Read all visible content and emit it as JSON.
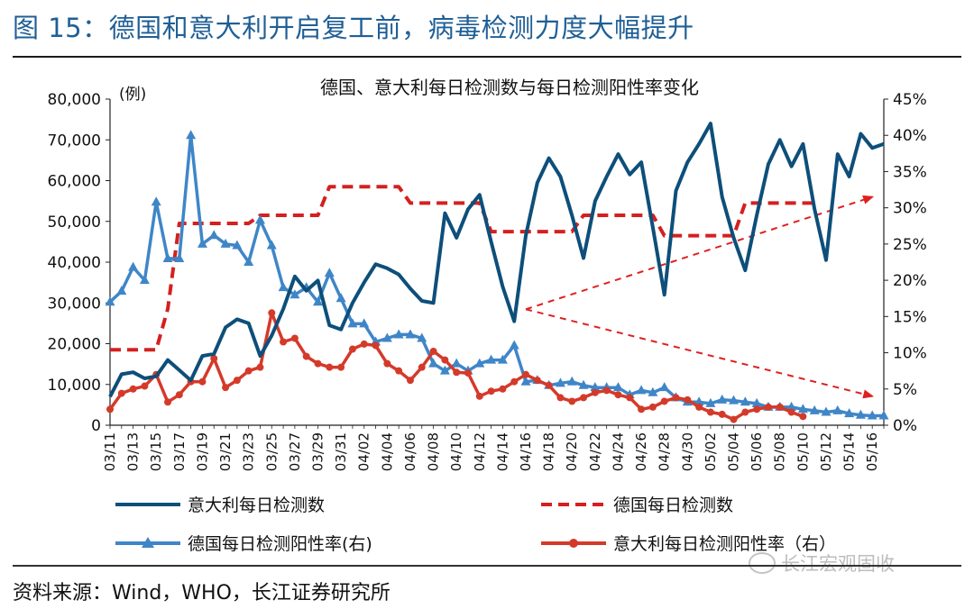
{
  "figure_title": "图 15：德国和意大利开启复工前，病毒检测力度大幅提升",
  "source_note": "资料来源：Wind，WHO，长江证券研究所",
  "watermark": "长江宏观固收",
  "colors": {
    "italy_tests": "#0d4f7a",
    "germany_tests": "#d42020",
    "germany_positive": "#3f86c8",
    "italy_positive": "#d43a2a",
    "arrow": "#e02020",
    "title_blue": "#1f5f96"
  },
  "chart_data": {
    "type": "line",
    "title": "德国、意大利每日检测数与每日检测阳性率变化",
    "y_left_unit": "(例)",
    "y_left_ticks": [
      "0",
      "10,000",
      "20,000",
      "30,000",
      "40,000",
      "50,000",
      "60,000",
      "70,000",
      "80,000"
    ],
    "y_right_ticks": [
      "0%",
      "5%",
      "10%",
      "15%",
      "20%",
      "25%",
      "30%",
      "35%",
      "40%",
      "45%"
    ],
    "ylim_left": [
      0,
      80000
    ],
    "ylim_right": [
      0,
      0.45
    ],
    "x_tick_labels": [
      "03/11",
      "03/13",
      "03/15",
      "03/17",
      "03/19",
      "03/21",
      "03/23",
      "03/25",
      "03/27",
      "03/29",
      "03/31",
      "04/02",
      "04/04",
      "04/06",
      "04/08",
      "04/10",
      "04/12",
      "04/14",
      "04/16",
      "04/18",
      "04/20",
      "04/22",
      "04/24",
      "04/26",
      "04/28",
      "04/30",
      "05/02",
      "05/04",
      "05/06",
      "05/08",
      "05/10",
      "05/12",
      "05/14",
      "05/16"
    ],
    "x": [
      "03/11",
      "03/12",
      "03/13",
      "03/14",
      "03/15",
      "03/16",
      "03/17",
      "03/18",
      "03/19",
      "03/20",
      "03/21",
      "03/22",
      "03/23",
      "03/24",
      "03/25",
      "03/26",
      "03/27",
      "03/28",
      "03/29",
      "03/30",
      "03/31",
      "04/01",
      "04/02",
      "04/03",
      "04/04",
      "04/05",
      "04/06",
      "04/07",
      "04/08",
      "04/09",
      "04/10",
      "04/11",
      "04/12",
      "04/13",
      "04/14",
      "04/15",
      "04/16",
      "04/17",
      "04/18",
      "04/19",
      "04/20",
      "04/21",
      "04/22",
      "04/23",
      "04/24",
      "04/25",
      "04/26",
      "04/27",
      "04/28",
      "04/29",
      "04/30",
      "05/01",
      "05/02",
      "05/03",
      "05/04",
      "05/05",
      "05/06",
      "05/07",
      "05/08",
      "05/09",
      "05/10",
      "05/11",
      "05/12",
      "05/13",
      "05/14",
      "05/15",
      "05/16",
      "05/17"
    ],
    "series": [
      {
        "name": "意大利每日检测数",
        "axis": "left",
        "style": "solid",
        "values": [
          7000,
          12500,
          13000,
          11500,
          12000,
          16000,
          13500,
          11000,
          17000,
          17500,
          24000,
          26000,
          25000,
          17000,
          22000,
          28500,
          36500,
          33000,
          35500,
          24500,
          23500,
          30000,
          35000,
          39500,
          38500,
          37000,
          33500,
          30500,
          30000,
          52000,
          46000,
          53000,
          56500,
          45000,
          34000,
          25500,
          46500,
          59500,
          65500,
          61000,
          51500,
          41000,
          55000,
          61000,
          66500,
          61500,
          64500,
          48500,
          32000,
          57500,
          64500,
          69000,
          74000,
          56000,
          46000,
          38000,
          51500,
          64000,
          70000,
          63500,
          69000,
          53000,
          40500,
          66500,
          61000,
          71500,
          68000,
          69000
        ]
      },
      {
        "name": "德国每日检测数",
        "axis": "left",
        "style": "dashed",
        "values": [
          18500,
          18500,
          18500,
          18500,
          18500,
          28500,
          49500,
          49500,
          49500,
          49500,
          49500,
          49500,
          49500,
          51500,
          51500,
          51500,
          51500,
          51500,
          51500,
          58500,
          58500,
          58500,
          58500,
          58500,
          58500,
          58500,
          54500,
          54500,
          54500,
          54500,
          54500,
          54500,
          54500,
          47500,
          47500,
          47500,
          47500,
          47500,
          47500,
          47500,
          47500,
          51500,
          51500,
          51500,
          51500,
          51500,
          51500,
          51500,
          46500,
          46500,
          46500,
          46500,
          46500,
          46500,
          46500,
          54500,
          54500,
          54500,
          54500,
          54500,
          54500,
          54500,
          null,
          null,
          null,
          null,
          null,
          null
        ]
      },
      {
        "name": "德国每日检测阳性率(右)",
        "axis": "right",
        "style": "line-triangle",
        "values": [
          0.17,
          0.185,
          0.218,
          0.2,
          0.308,
          0.23,
          0.23,
          0.4,
          0.25,
          0.262,
          0.25,
          0.248,
          0.225,
          0.283,
          0.248,
          0.19,
          0.18,
          0.19,
          0.17,
          0.21,
          0.175,
          0.14,
          0.14,
          0.115,
          0.12,
          0.125,
          0.125,
          0.12,
          0.085,
          0.075,
          0.085,
          0.075,
          0.085,
          0.09,
          0.09,
          0.11,
          0.06,
          0.062,
          0.055,
          0.058,
          0.06,
          0.055,
          0.052,
          0.052,
          0.052,
          0.042,
          0.048,
          0.045,
          0.052,
          0.038,
          0.032,
          0.032,
          0.03,
          0.035,
          0.034,
          0.032,
          0.03,
          0.025,
          0.025,
          0.025,
          0.022,
          0.02,
          0.018,
          0.02,
          0.016,
          0.014,
          0.013,
          0.013
        ]
      },
      {
        "name": "意大利每日检测阳性率（右）",
        "axis": "right",
        "style": "line-circle",
        "values": [
          0.022,
          0.044,
          0.05,
          0.054,
          0.07,
          0.032,
          0.042,
          0.06,
          0.06,
          0.092,
          0.052,
          0.062,
          0.075,
          0.08,
          0.155,
          0.115,
          0.12,
          0.095,
          0.085,
          0.08,
          0.08,
          0.105,
          0.112,
          0.11,
          0.085,
          0.075,
          0.062,
          0.08,
          0.102,
          0.09,
          0.073,
          0.072,
          0.04,
          0.047,
          0.05,
          0.06,
          0.07,
          0.062,
          0.055,
          0.038,
          0.033,
          0.038,
          0.045,
          0.048,
          0.042,
          0.038,
          0.022,
          0.025,
          0.033,
          0.038,
          0.035,
          0.025,
          0.018,
          0.015,
          0.008,
          0.018,
          0.022,
          0.025,
          0.025,
          0.018,
          0.012,
          null,
          null,
          null,
          null,
          null,
          null,
          null
        ]
      }
    ],
    "annotations": [
      {
        "type": "dashed-arrow",
        "from": {
          "x": "04/16",
          "y": 0.16
        },
        "to": {
          "x": "05/16",
          "y": 0.315
        },
        "axis": "right"
      },
      {
        "type": "dashed-arrow",
        "from": {
          "x": "04/16",
          "y": 0.16
        },
        "to": {
          "x": "05/16",
          "y": 0.04
        },
        "axis": "right"
      }
    ],
    "legend": {
      "placement": "bottom",
      "items": [
        {
          "label": "意大利每日检测数",
          "series": 0
        },
        {
          "label": "德国每日检测数",
          "series": 1
        },
        {
          "label": "德国每日检测阳性率(右)",
          "series": 2
        },
        {
          "label": "意大利每日检测阳性率（右）",
          "series": 3
        }
      ]
    }
  }
}
